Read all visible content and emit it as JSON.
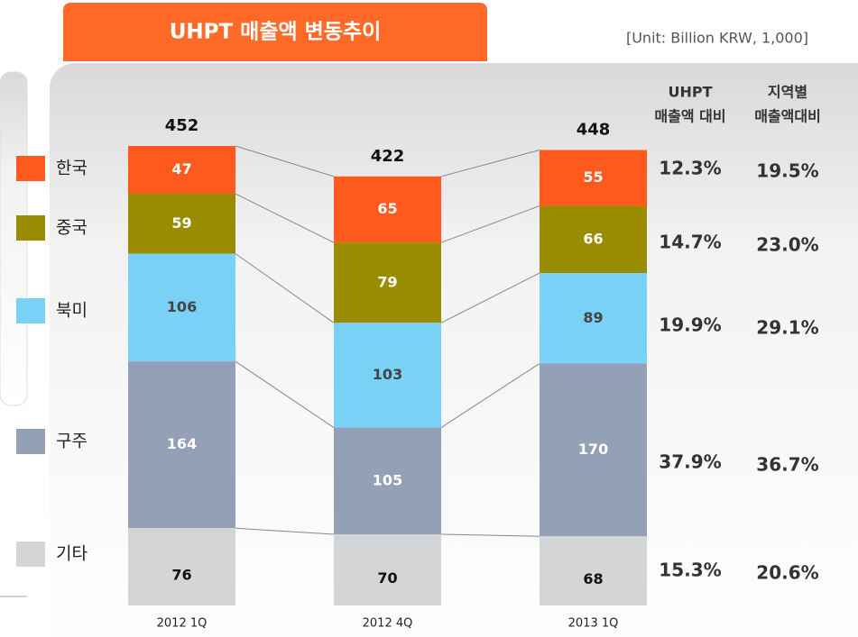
{
  "chart_data": {
    "type": "bar",
    "stacked": true,
    "title": "UHPT 매출액 변동추이",
    "unit_note": "[Unit: Billion KRW, 1,000]",
    "categories": [
      "2012 1Q",
      "2012 4Q",
      "2013 1Q"
    ],
    "series": [
      {
        "name": "한국",
        "color": "#ff5a1e",
        "values": [
          47,
          65,
          55
        ]
      },
      {
        "name": "중국",
        "color": "#9a8c00",
        "values": [
          59,
          79,
          66
        ]
      },
      {
        "name": "북미",
        "color": "#79d1f6",
        "values": [
          106,
          103,
          89
        ]
      },
      {
        "name": "구주",
        "color": "#94a0b6",
        "values": [
          164,
          105,
          170
        ]
      },
      {
        "name": "기타",
        "color": "#d4d5d6",
        "values": [
          76,
          70,
          68
        ]
      }
    ],
    "totals": [
      452,
      422,
      448
    ],
    "share_table": {
      "headers": [
        [
          "UHPT",
          "매출액 대비"
        ],
        [
          "지역별",
          "매출액대비"
        ]
      ],
      "rows": [
        [
          "12.3%",
          "19.5%"
        ],
        [
          "14.7%",
          "23.0%"
        ],
        [
          "19.9%",
          "29.1%"
        ],
        [
          "37.9%",
          "36.7%"
        ],
        [
          "15.3%",
          "20.6%"
        ]
      ]
    }
  }
}
